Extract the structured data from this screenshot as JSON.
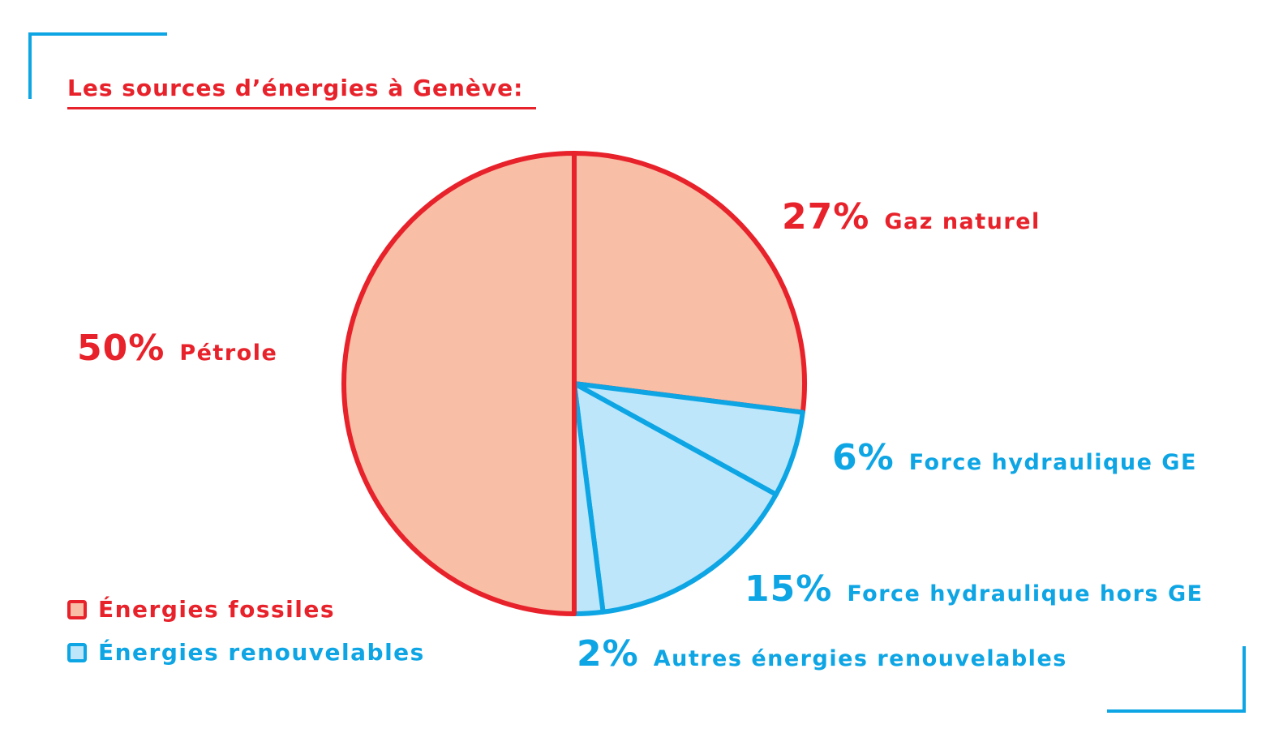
{
  "colors": {
    "fossil_fill": "#f8bea6",
    "fossil_stroke": "#e8222b",
    "renew_fill": "#bde6fa",
    "renew_stroke": "#0ea5e4",
    "frame": "#0ea5e4"
  },
  "title": "Les sources d’énergies à Genève:",
  "chart_data": {
    "type": "pie",
    "title": "Les sources d’énergies à Genève:",
    "slices": [
      {
        "label": "Gaz naturel",
        "value": 27,
        "value_label": "27%",
        "group": "fossil"
      },
      {
        "label": "Force hydraulique GE",
        "value": 6,
        "value_label": "6%",
        "group": "renewable"
      },
      {
        "label": "Force hydraulique hors GE",
        "value": 15,
        "value_label": "15%",
        "group": "renewable"
      },
      {
        "label": "Autres énergies renouvelables",
        "value": 2,
        "value_label": "2%",
        "group": "renewable"
      },
      {
        "label": "Pétrole",
        "value": 50,
        "value_label": "50%",
        "group": "fossil"
      }
    ],
    "legend": [
      {
        "label": "Énergies fossiles",
        "group": "fossil"
      },
      {
        "label": "Énergies renouvelables",
        "group": "renewable"
      }
    ],
    "start_angle": "12 o'clock",
    "direction": "clockwise"
  }
}
